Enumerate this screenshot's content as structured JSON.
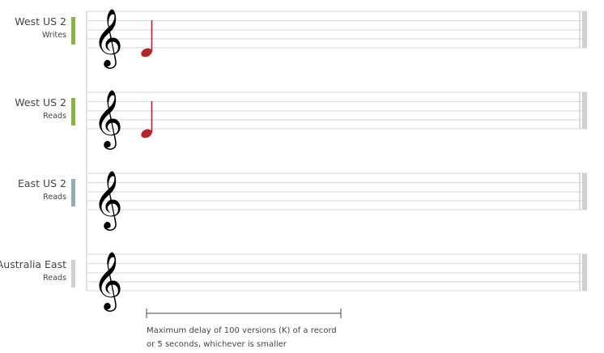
{
  "staffs": [
    {
      "region": "West US 2",
      "operation": "Writes",
      "color": "#8cb04a",
      "has_note": true
    },
    {
      "region": "West US 2",
      "operation": "Reads",
      "color": "#8cb04a",
      "has_note": true
    },
    {
      "region": "East US 2",
      "operation": "Reads",
      "color": "#98a9b3",
      "has_note": false
    },
    {
      "region": "Australia East",
      "operation": "Reads",
      "color": "#d0d0d0",
      "has_note": false
    }
  ],
  "note_color": "#b0262e",
  "clef_icon": "treble-clef-icon",
  "caption": {
    "line1": "Maximum delay of 100 versions (K) of a record",
    "line2": "or 5 seconds, whichever is smaller"
  }
}
